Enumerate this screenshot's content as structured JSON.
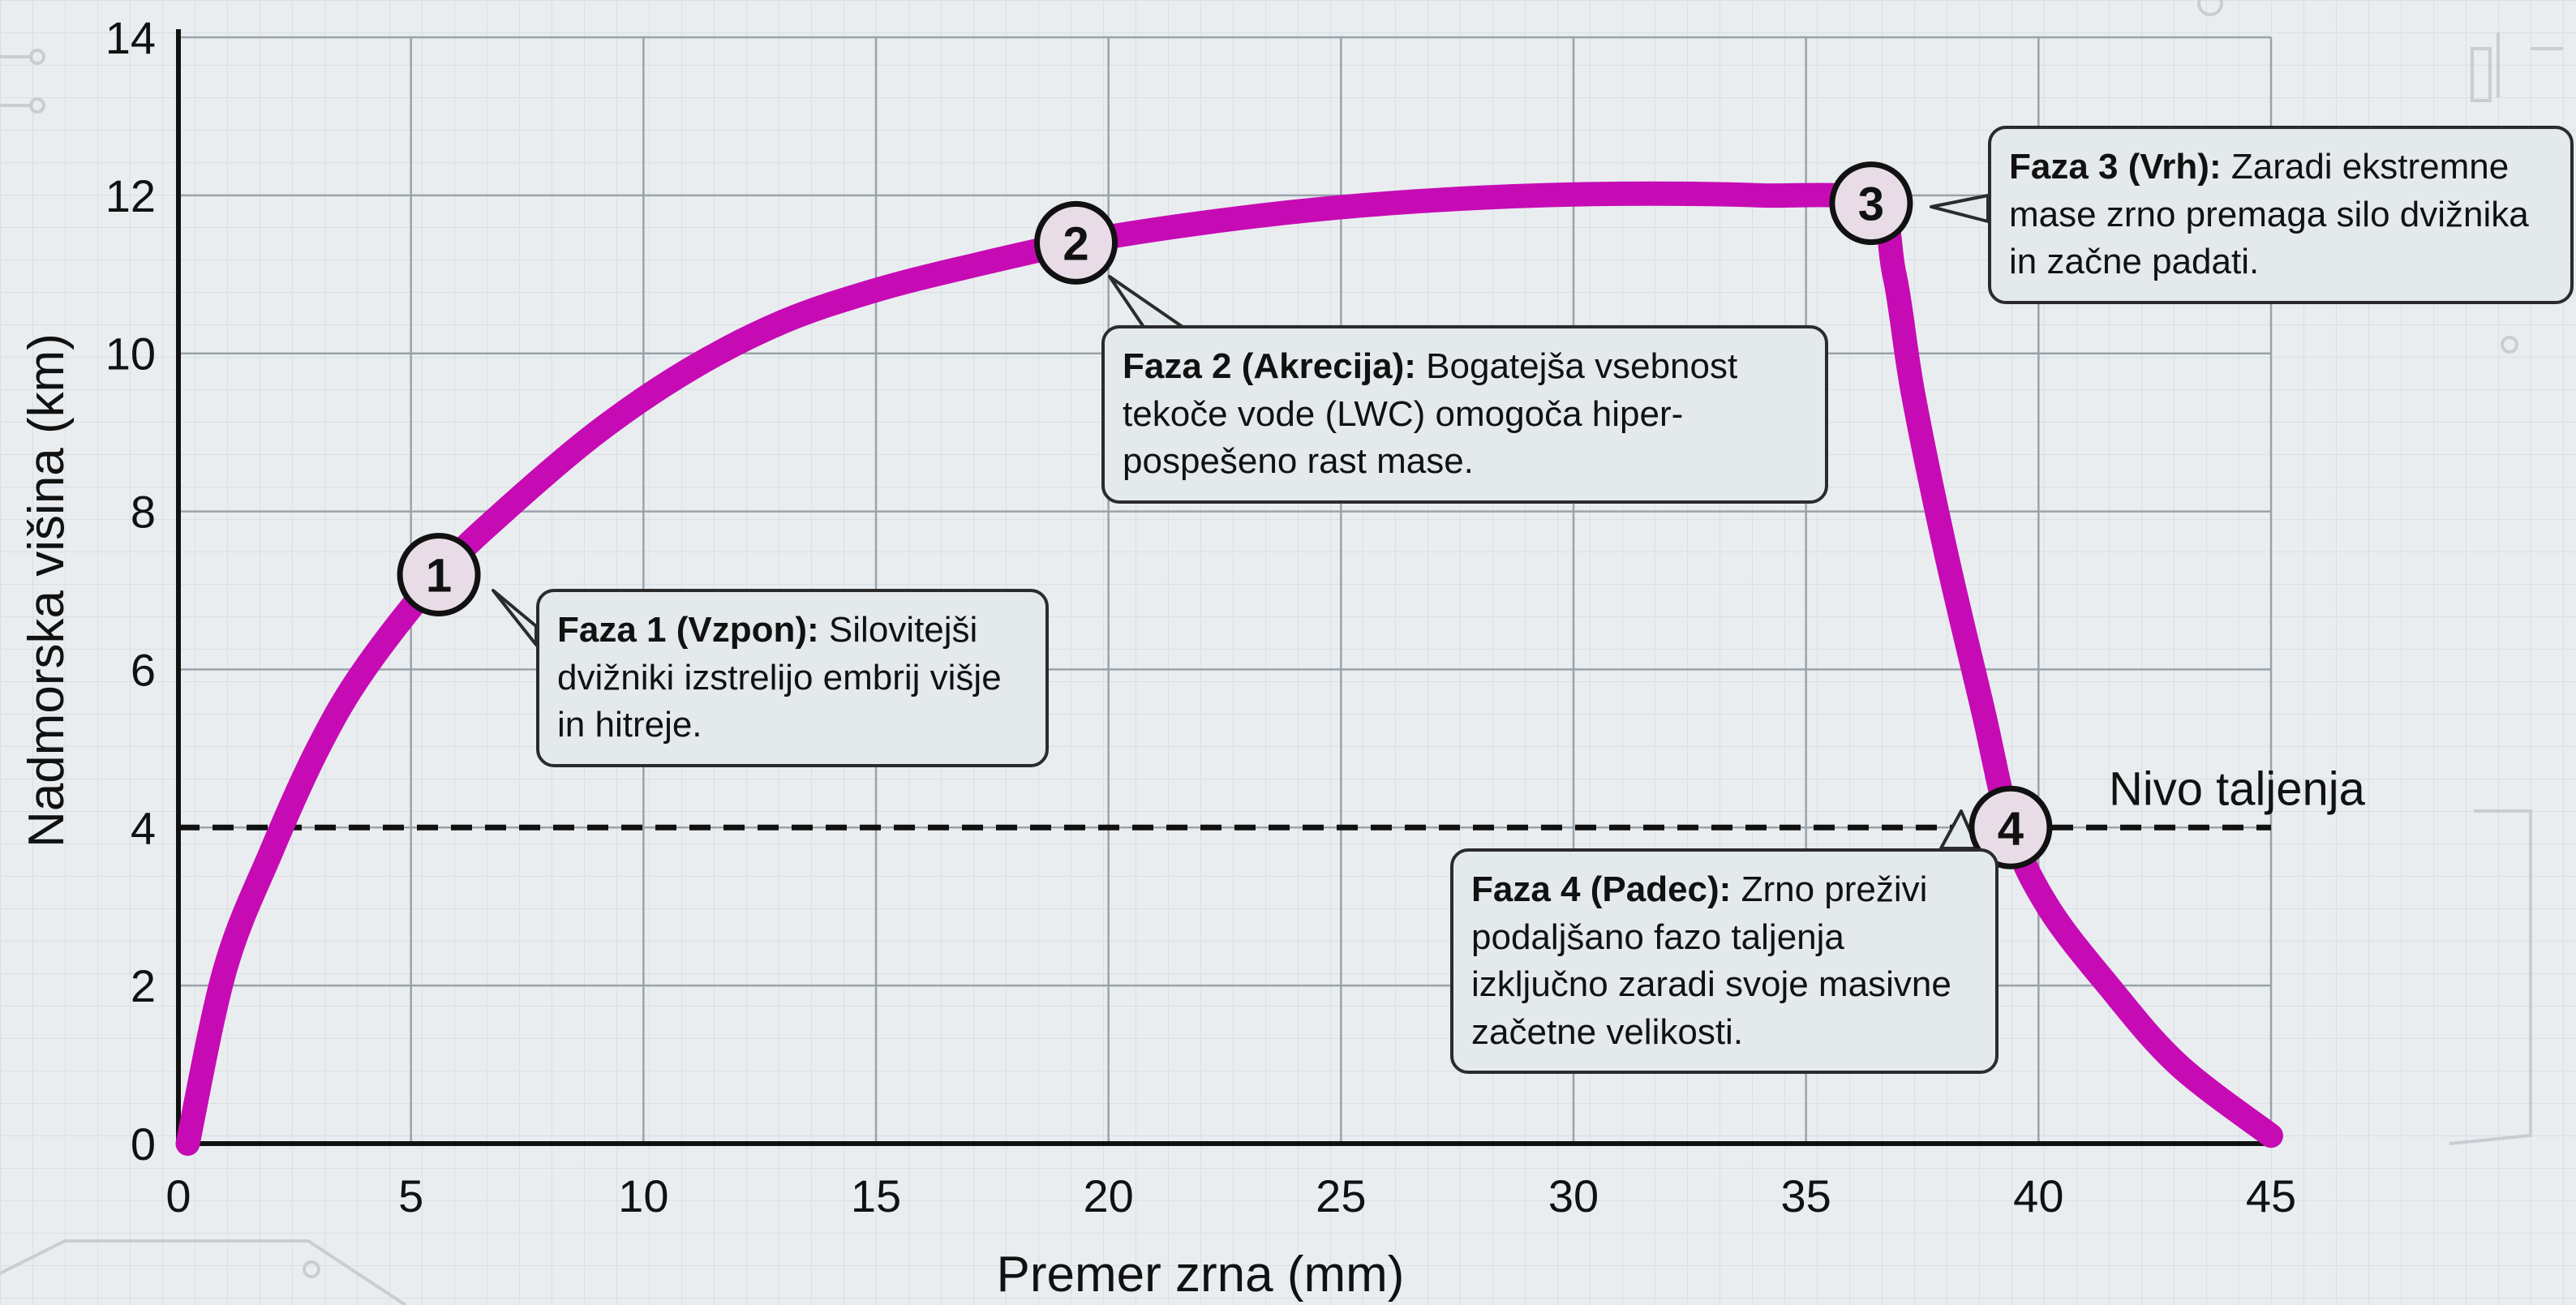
{
  "chart_data": {
    "type": "line",
    "xlabel": "Premer zrna (mm)",
    "ylabel": "Nadmorska višina (km)",
    "xlim": [
      0,
      45
    ],
    "ylim": [
      0,
      14
    ],
    "x_ticks": [
      0,
      5,
      10,
      15,
      20,
      25,
      30,
      35,
      40,
      45
    ],
    "y_ticks": [
      0,
      2,
      4,
      6,
      8,
      10,
      12,
      14
    ],
    "grid": true,
    "series": [
      {
        "color": "#c60bb4",
        "points": [
          [
            0.2,
            0
          ],
          [
            1,
            2.2
          ],
          [
            2,
            3.7
          ],
          [
            3,
            5
          ],
          [
            4,
            6
          ],
          [
            5.6,
            7.2
          ],
          [
            7,
            8
          ],
          [
            9,
            9
          ],
          [
            11,
            9.8
          ],
          [
            13,
            10.4
          ],
          [
            15,
            10.8
          ],
          [
            17,
            11.1
          ],
          [
            19.3,
            11.4
          ],
          [
            22,
            11.65
          ],
          [
            25,
            11.85
          ],
          [
            28,
            11.97
          ],
          [
            31,
            12.02
          ],
          [
            34,
            12.0
          ],
          [
            36.4,
            11.9
          ],
          [
            36.9,
            11.0
          ],
          [
            37.3,
            9.5
          ],
          [
            38,
            7.5
          ],
          [
            38.8,
            5.5
          ],
          [
            39.4,
            4.0
          ],
          [
            40.2,
            3.0
          ],
          [
            41.5,
            2.0
          ],
          [
            43,
            1.0
          ],
          [
            45,
            0.1
          ]
        ]
      }
    ],
    "reference_line": {
      "y": 4,
      "style": "dashed",
      "label": "Nivo taljenja"
    },
    "markers": [
      {
        "label": "1",
        "x": 5.6,
        "y": 7.2
      },
      {
        "label": "2",
        "x": 19.3,
        "y": 11.4
      },
      {
        "label": "3",
        "x": 36.4,
        "y": 11.9
      },
      {
        "label": "4",
        "x": 39.4,
        "y": 4.0
      }
    ],
    "annotations": [
      {
        "id": "1",
        "title": "Faza 1 (Vzpon):",
        "text": "Silovitejši dvižniki izstrelijo embrij višje in hitreje."
      },
      {
        "id": "2",
        "title": "Faza 2 (Akrecija):",
        "text": "Bogatejša vsebnost tekoče vode (LWC) omogoča hiper-pospešeno rast mase."
      },
      {
        "id": "3",
        "title": "Faza 3 (Vrh):",
        "text": "Zaradi ekstremne mase zrno premaga silo dvižnika in začne padati."
      },
      {
        "id": "4",
        "title": "Faza 4 (Padec):",
        "text": "Zrno preživi podaljšano fazo taljenja izključno zaradi svoje masivne začetne velikosti."
      }
    ]
  }
}
